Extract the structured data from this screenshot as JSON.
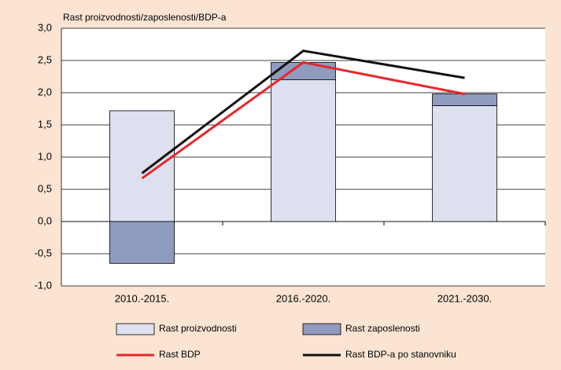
{
  "chart_data": {
    "type": "bar-line",
    "y_label": "Rast proizvodnosti/zaposlenosti/BDP-a",
    "categories": [
      "2010.-2015.",
      "2016.-2020.",
      "2021.-2030."
    ],
    "series": [
      {
        "name": "Rast proizvodnosti",
        "kind": "bar",
        "color": "#dde0ee",
        "values": [
          1.72,
          2.2,
          1.8
        ]
      },
      {
        "name": "Rast zaposlenosti",
        "kind": "bar",
        "color": "#8f9bbf",
        "values": [
          -0.65,
          0.27,
          0.18
        ]
      },
      {
        "name": "Rast BDP",
        "kind": "line",
        "color": "#e8262b",
        "values": [
          0.67,
          2.47,
          1.98
        ]
      },
      {
        "name": "Rast BDP-a po stanovniku",
        "kind": "line",
        "color": "#111111",
        "values": [
          0.75,
          2.65,
          2.23
        ]
      }
    ],
    "ylim": [
      -1.0,
      3.0
    ],
    "yticks": [
      {
        "value": -1.0,
        "label": "-1,0"
      },
      {
        "value": -0.5,
        "label": "-0,5"
      },
      {
        "value": 0.0,
        "label": "0,0"
      },
      {
        "value": 0.5,
        "label": "0,5"
      },
      {
        "value": 1.0,
        "label": "1,0"
      },
      {
        "value": 1.5,
        "label": "1,5"
      },
      {
        "value": 2.0,
        "label": "2,0"
      },
      {
        "value": 2.5,
        "label": "2,5"
      },
      {
        "value": 3.0,
        "label": "3,0"
      }
    ],
    "grid": true,
    "stacked": true
  }
}
